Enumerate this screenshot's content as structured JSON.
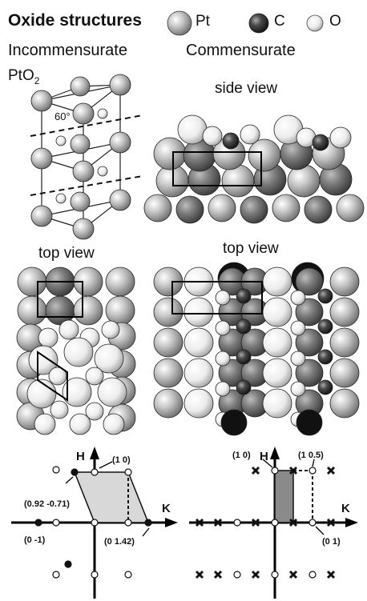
{
  "header": {
    "title": "Oxide structures",
    "legend": [
      {
        "label": "Pt",
        "color": "#b8b8b8"
      },
      {
        "label": "C",
        "color": "#555555"
      },
      {
        "label": "O",
        "color": "#f0f0f0"
      }
    ]
  },
  "left_column": {
    "heading": "Incommensurate",
    "crystal_label_main": "PtO",
    "crystal_label_sub": "2",
    "angle_label": "60°",
    "top_view_label": "top view"
  },
  "right_column": {
    "heading": "Commensurate",
    "side_view_label": "side view",
    "top_view_label": "top view"
  },
  "left_reciprocal": {
    "h_axis": "H",
    "k_axis": "K",
    "points": [
      {
        "label": "(1 0)"
      },
      {
        "label": "(0.92 -0.71)"
      },
      {
        "label": "(0 -1)"
      },
      {
        "label": "(0 1.42)"
      }
    ]
  },
  "right_reciprocal": {
    "h_axis": "H",
    "k_axis": "K",
    "points": [
      {
        "label": "(1 0)"
      },
      {
        "label": "(1 0.5)"
      },
      {
        "label": "(0 1)"
      }
    ]
  }
}
